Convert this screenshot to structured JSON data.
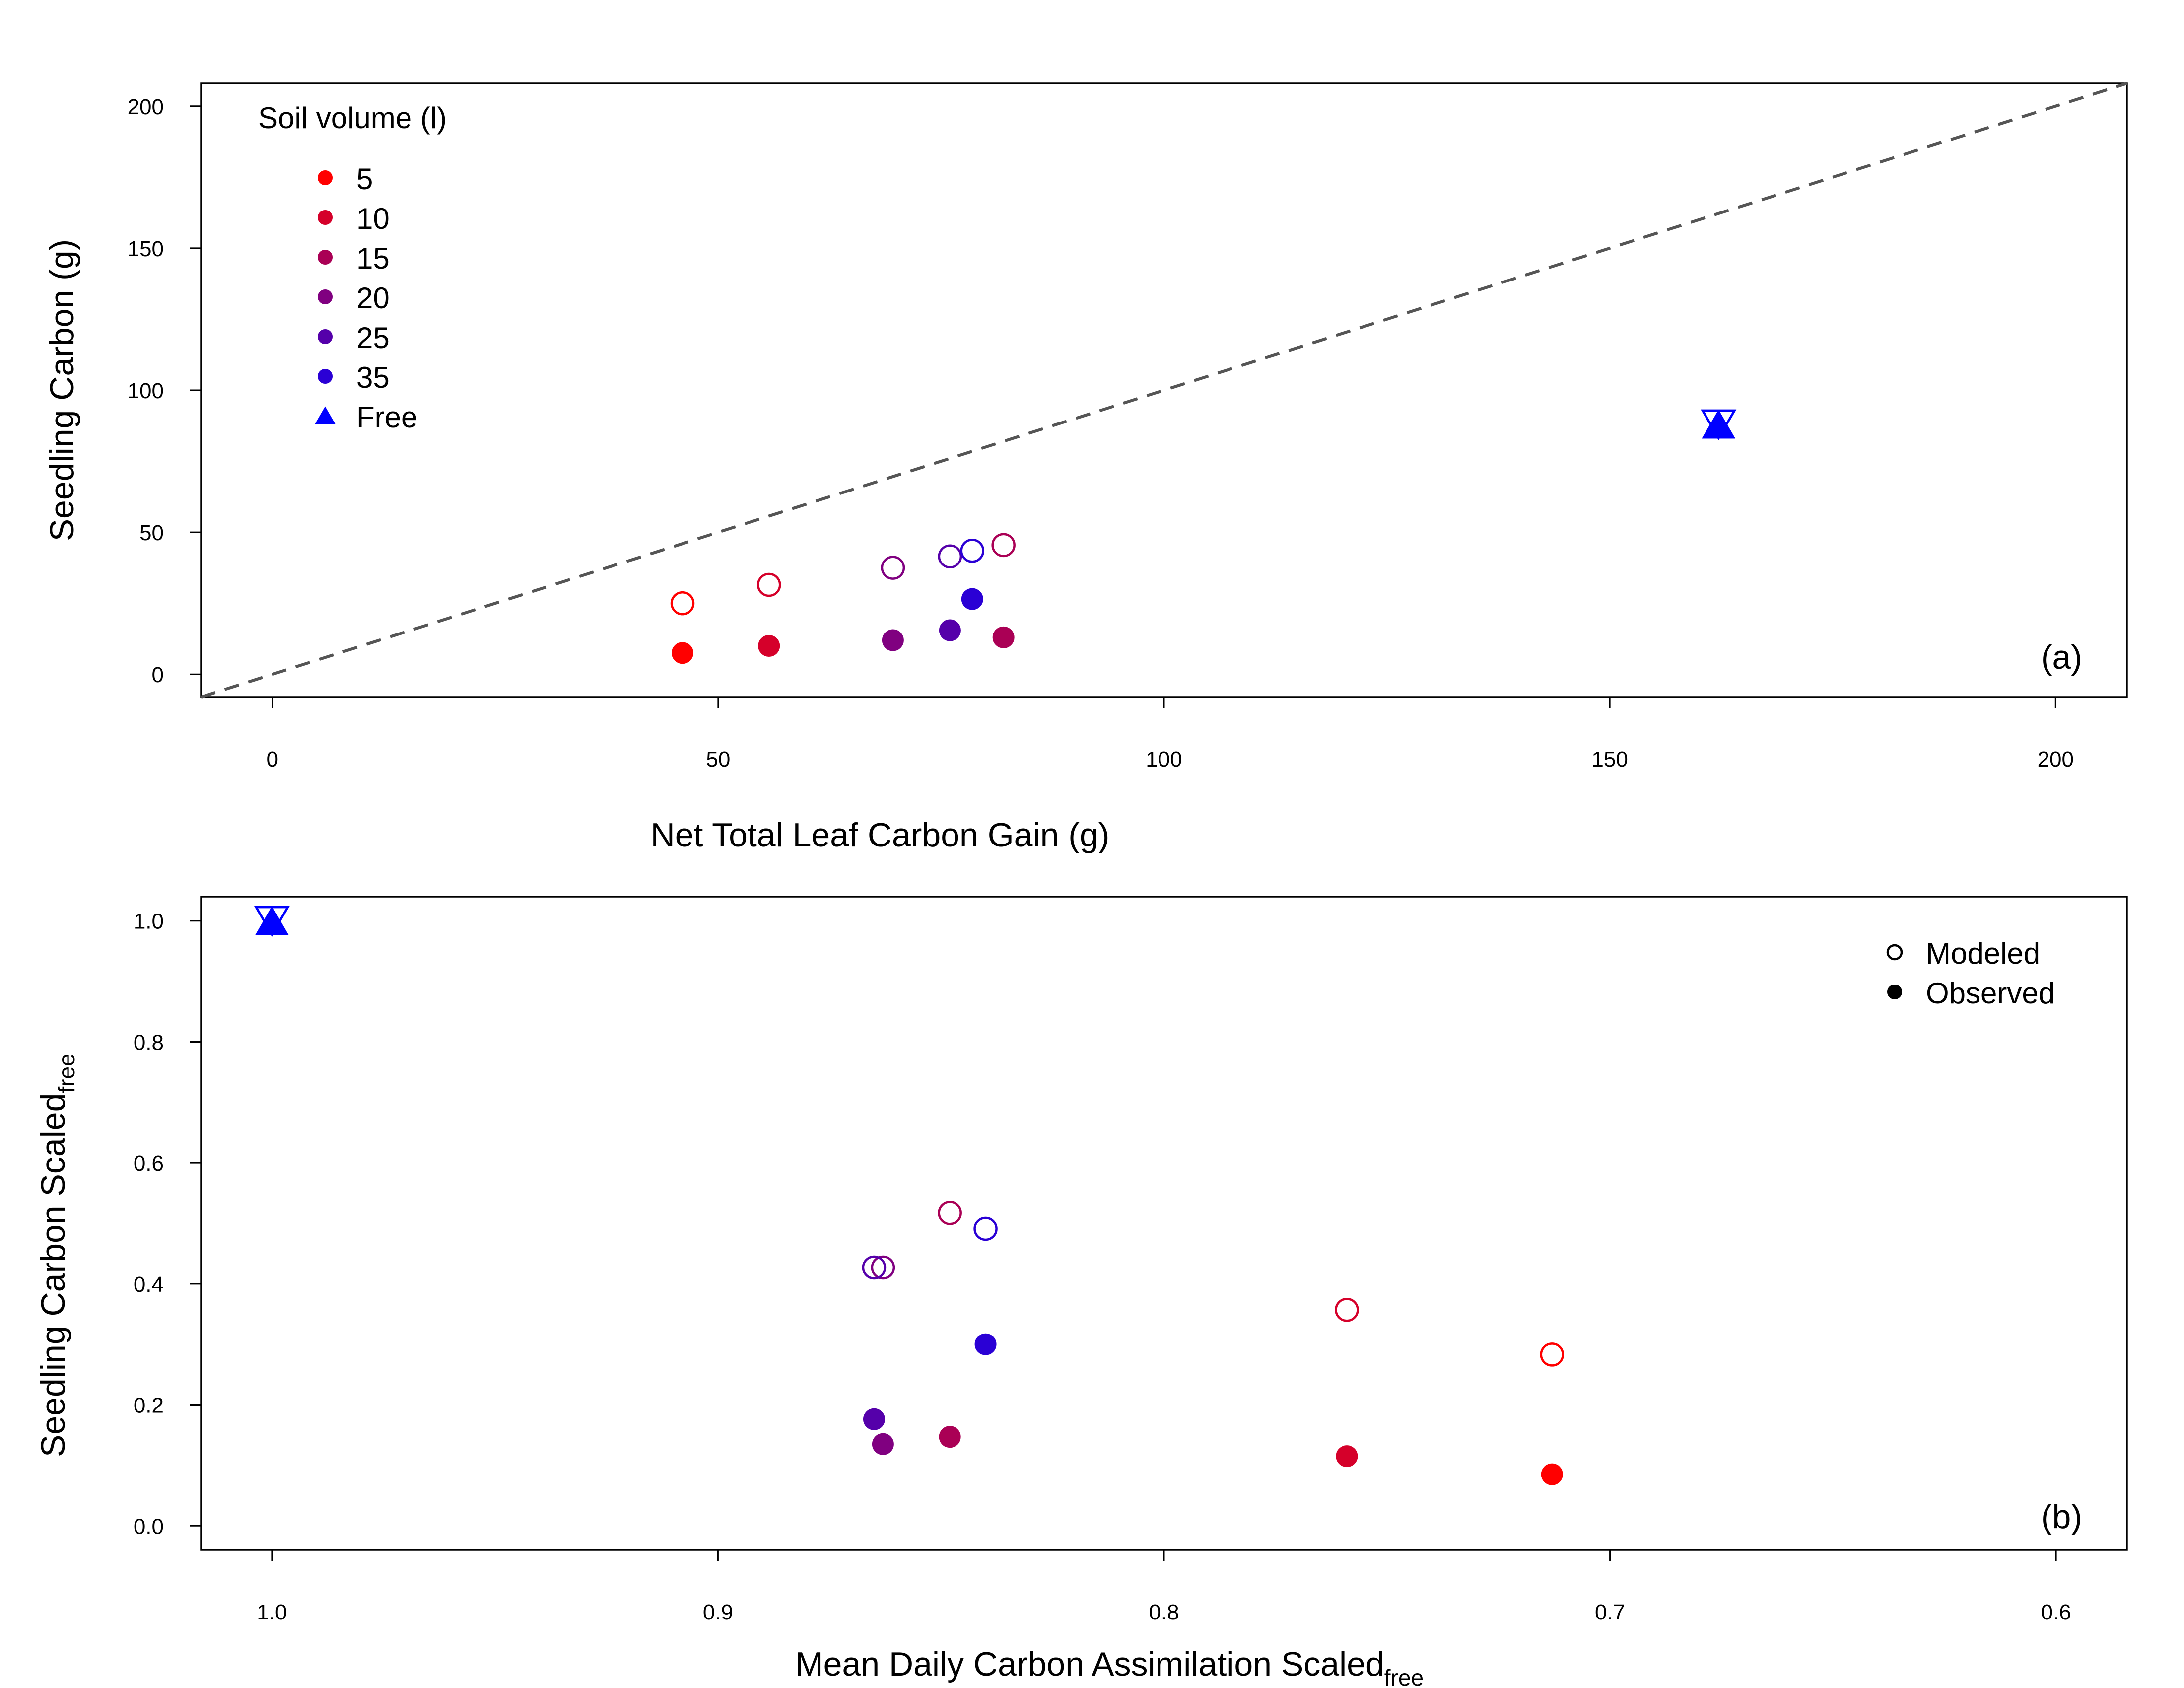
{
  "chart_data": [
    {
      "type": "scatter",
      "panel_label": "(a)",
      "xlabel": "Net Total Leaf Carbon Gain (g)",
      "ylabel": "Seedling Carbon (g)",
      "xlim": [
        -8,
        208
      ],
      "ylim": [
        -8,
        208
      ],
      "xticks": [
        0,
        50,
        100,
        150,
        200
      ],
      "yticks": [
        0,
        50,
        100,
        150,
        200
      ],
      "reference_line": {
        "type": "1:1",
        "style": "dashed",
        "color": "#555555"
      },
      "legend": {
        "title": "Soil volume (l)",
        "placement": "top-left",
        "entries": [
          {
            "label": "5",
            "color": "#ff0000",
            "marker": "circle"
          },
          {
            "label": "10",
            "color": "#d5002a",
            "marker": "circle"
          },
          {
            "label": "15",
            "color": "#aa0055",
            "marker": "circle"
          },
          {
            "label": "20",
            "color": "#800080",
            "marker": "circle"
          },
          {
            "label": "25",
            "color": "#5500aa",
            "marker": "circle"
          },
          {
            "label": "35",
            "color": "#2a00d5",
            "marker": "circle"
          },
          {
            "label": "Free",
            "color": "#0000ff",
            "marker": "triangle"
          }
        ]
      },
      "series": [
        {
          "group": "5",
          "color": "#ff0000",
          "points": [
            {
              "x": 46,
              "y": 25,
              "kind": "Modeled"
            },
            {
              "x": 46,
              "y": 7.5,
              "kind": "Observed"
            }
          ]
        },
        {
          "group": "10",
          "color": "#d5002a",
          "points": [
            {
              "x": 55.7,
              "y": 31.5,
              "kind": "Modeled"
            },
            {
              "x": 55.7,
              "y": 10,
              "kind": "Observed"
            }
          ]
        },
        {
          "group": "15",
          "color": "#aa0055",
          "points": [
            {
              "x": 82,
              "y": 45.5,
              "kind": "Modeled"
            },
            {
              "x": 82,
              "y": 13,
              "kind": "Observed"
            }
          ]
        },
        {
          "group": "20",
          "color": "#800080",
          "points": [
            {
              "x": 69.6,
              "y": 37.5,
              "kind": "Modeled"
            },
            {
              "x": 69.6,
              "y": 12,
              "kind": "Observed"
            }
          ]
        },
        {
          "group": "25",
          "color": "#5500aa",
          "points": [
            {
              "x": 76,
              "y": 41.5,
              "kind": "Modeled"
            },
            {
              "x": 76,
              "y": 15.5,
              "kind": "Observed"
            }
          ]
        },
        {
          "group": "35",
          "color": "#2a00d5",
          "points": [
            {
              "x": 78.5,
              "y": 43.5,
              "kind": "Modeled"
            },
            {
              "x": 78.5,
              "y": 26.5,
              "kind": "Observed"
            }
          ]
        },
        {
          "group": "Free",
          "color": "#0000ff",
          "points": [
            {
              "x": 162.2,
              "y": 88,
              "kind": "Modeled"
            },
            {
              "x": 162.2,
              "y": 88,
              "kind": "Observed"
            }
          ]
        }
      ]
    },
    {
      "type": "scatter",
      "panel_label": "(b)",
      "xlabel": "Mean Daily Carbon Assimilation Scaled",
      "xlabel_sub": "free",
      "ylabel": "Seedling Carbon Scaled",
      "ylabel_sub": "free",
      "xlim": [
        1.0,
        0.6
      ],
      "x_axis_reversed": true,
      "ylim": [
        -0.04,
        1.04
      ],
      "xticks": [
        1.0,
        0.9,
        0.8,
        0.7,
        0.6
      ],
      "xtick_labels": [
        "1.0",
        "0.9",
        "0.8",
        "0.7",
        "0.6"
      ],
      "yticks": [
        0.0,
        0.2,
        0.4,
        0.6,
        0.8,
        1.0
      ],
      "ytick_labels": [
        "0.0",
        "0.2",
        "0.4",
        "0.6",
        "0.8",
        "1.0"
      ],
      "legend": {
        "placement": "top-right",
        "entries": [
          {
            "label": "Modeled",
            "marker": "open-circle"
          },
          {
            "label": "Observed",
            "marker": "filled-circle"
          }
        ]
      },
      "series": [
        {
          "group": "5",
          "color": "#ff0000",
          "points": [
            {
              "x": 0.713,
              "y": 0.283,
              "kind": "Modeled"
            },
            {
              "x": 0.713,
              "y": 0.085,
              "kind": "Observed"
            }
          ]
        },
        {
          "group": "10",
          "color": "#d5002a",
          "points": [
            {
              "x": 0.759,
              "y": 0.357,
              "kind": "Modeled"
            },
            {
              "x": 0.759,
              "y": 0.115,
              "kind": "Observed"
            }
          ]
        },
        {
          "group": "15",
          "color": "#aa0055",
          "points": [
            {
              "x": 0.848,
              "y": 0.517,
              "kind": "Modeled"
            },
            {
              "x": 0.848,
              "y": 0.147,
              "kind": "Observed"
            }
          ]
        },
        {
          "group": "20",
          "color": "#800080",
          "points": [
            {
              "x": 0.863,
              "y": 0.427,
              "kind": "Modeled"
            },
            {
              "x": 0.863,
              "y": 0.135,
              "kind": "Observed"
            }
          ]
        },
        {
          "group": "25",
          "color": "#5500aa",
          "points": [
            {
              "x": 0.865,
              "y": 0.427,
              "kind": "Modeled"
            },
            {
              "x": 0.865,
              "y": 0.176,
              "kind": "Observed"
            }
          ]
        },
        {
          "group": "35",
          "color": "#2a00d5",
          "points": [
            {
              "x": 0.84,
              "y": 0.491,
              "kind": "Modeled"
            },
            {
              "x": 0.84,
              "y": 0.3,
              "kind": "Observed"
            }
          ]
        },
        {
          "group": "Free",
          "color": "#0000ff",
          "points": [
            {
              "x": 1.0,
              "y": 1.0,
              "kind": "Modeled"
            },
            {
              "x": 1.0,
              "y": 1.0,
              "kind": "Observed"
            }
          ]
        }
      ]
    }
  ]
}
